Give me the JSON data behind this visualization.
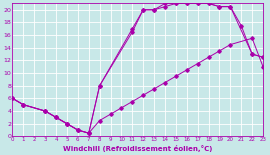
{
  "xlabel": "Windchill (Refroidissement éolien,°C)",
  "background_color": "#c8e8e8",
  "line_color": "#aa00aa",
  "xlim": [
    0,
    23
  ],
  "ylim": [
    0,
    21
  ],
  "xticks": [
    0,
    1,
    2,
    3,
    4,
    5,
    6,
    7,
    8,
    9,
    10,
    11,
    12,
    13,
    14,
    15,
    16,
    17,
    18,
    19,
    20,
    21,
    22,
    23
  ],
  "yticks": [
    0,
    2,
    4,
    6,
    8,
    10,
    12,
    14,
    16,
    18,
    20
  ],
  "grid_color": "#ffffff",
  "curve1_x": [
    0,
    1,
    3,
    4,
    5,
    6,
    7,
    8,
    11,
    12,
    13,
    14,
    15,
    16,
    17,
    18,
    19,
    20,
    22,
    23
  ],
  "curve1_y": [
    6,
    5,
    4,
    3,
    2,
    1,
    0.5,
    8,
    17,
    20,
    20,
    20.5,
    21,
    21,
    21,
    21,
    20.5,
    20.5,
    13,
    12.5
  ],
  "curve2_x": [
    0,
    1,
    3,
    4,
    5,
    6,
    7,
    8,
    9,
    10,
    11,
    12,
    13,
    14,
    15,
    16,
    17,
    18,
    19,
    20,
    22,
    23
  ],
  "curve2_y": [
    6,
    5,
    4,
    3,
    2,
    1,
    0.5,
    2.5,
    3.5,
    4.5,
    5.5,
    6.5,
    7.5,
    8.5,
    9.5,
    10.5,
    11.5,
    12.5,
    13.5,
    14.5,
    15.5,
    11
  ],
  "curve3_x": [
    0,
    1,
    3,
    4,
    5,
    6,
    7,
    8,
    11,
    12,
    13,
    14,
    15,
    16,
    17,
    18,
    19,
    20,
    21,
    22,
    23
  ],
  "curve3_y": [
    6,
    5,
    4,
    3,
    2,
    1,
    0.5,
    8,
    16.5,
    20,
    20,
    21,
    21,
    21,
    21,
    21,
    20.5,
    20.5,
    17.5,
    13,
    12.5
  ]
}
